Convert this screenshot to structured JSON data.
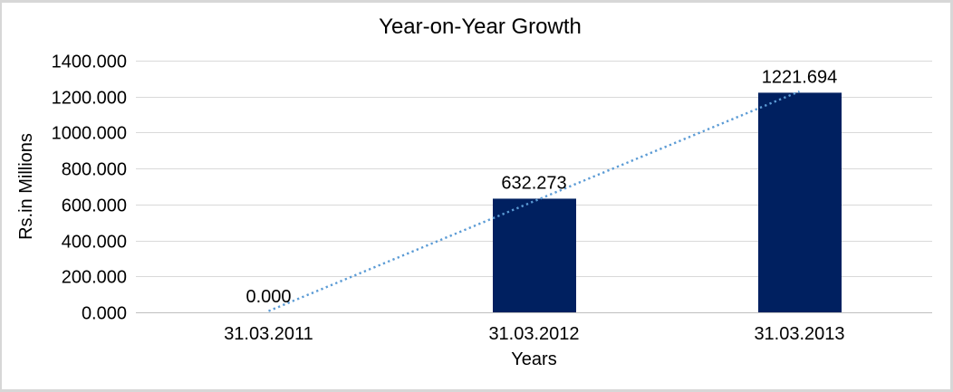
{
  "frame": {
    "background": "#ffffff",
    "border_color": "#d7d7d7"
  },
  "chart_data": {
    "type": "bar",
    "title": "Year-on-Year Growth",
    "xlabel": "Years",
    "ylabel": "Rs.in Millions",
    "categories": [
      "31.03.2011",
      "31.03.2012",
      "31.03.2013"
    ],
    "values": [
      0,
      632.273,
      1221.694
    ],
    "data_labels": [
      "0.000",
      "632.273",
      "1221.694"
    ],
    "y_ticks": [
      "0.000",
      "200.000",
      "400.000",
      "600.000",
      "800.000",
      "1000.000",
      "1200.000",
      "1400.000"
    ],
    "y_tick_step": 200,
    "ylim": [
      0,
      1400
    ],
    "grid": true,
    "legend": "none",
    "bar_color": "#002060",
    "gridline_color": "#D9D9D9",
    "axis_line_color": "#BFBFBF",
    "text_color": "#000000",
    "trendline": {
      "type": "linear",
      "style": "dotted",
      "color": "#5B9BD5"
    }
  }
}
